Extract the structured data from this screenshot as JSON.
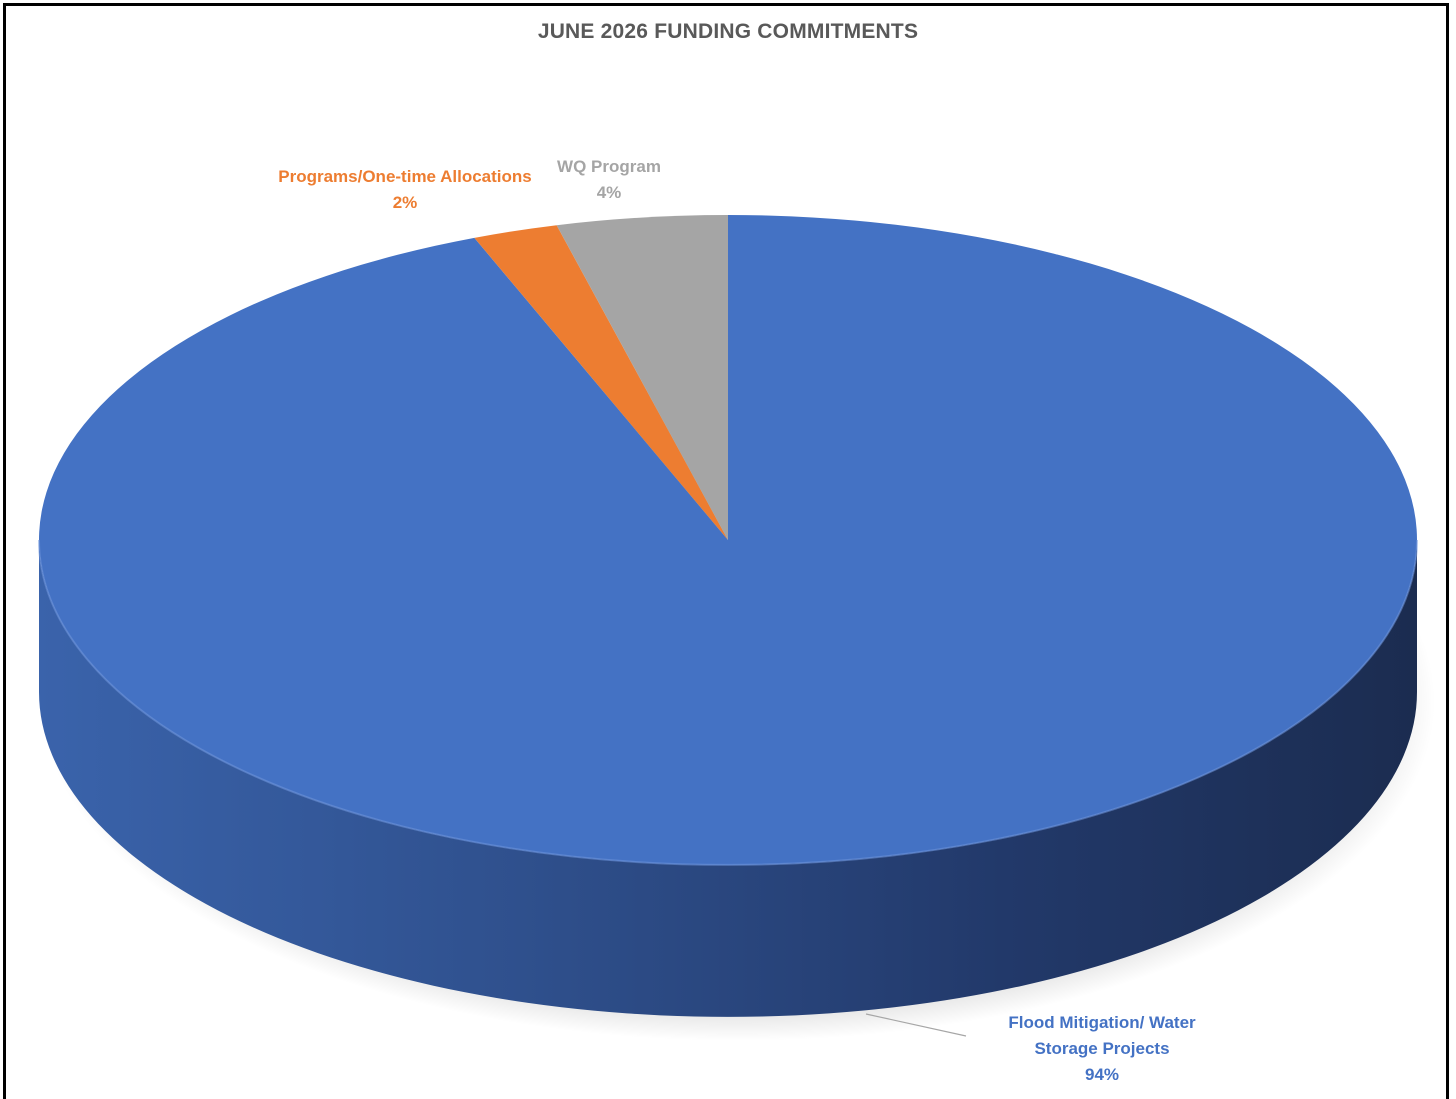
{
  "chart_data": {
    "type": "pie",
    "three_d": true,
    "title": "JUNE 2026 FUNDING COMMITMENTS",
    "start_angle_deg": 0,
    "direction": "clockwise",
    "slices": [
      {
        "label": "Flood Mitigation/ Water Storage Projects",
        "label_lines": [
          "Flood Mitigation/ Water",
          "Storage Projects"
        ],
        "value": 94,
        "display": "94%",
        "color": "#4472C4",
        "label_color": "#4472C4"
      },
      {
        "label": "Programs/One-time Allocations",
        "label_lines": [
          "Programs/One-time Allocations"
        ],
        "value": 2,
        "display": "2%",
        "color": "#ED7D31",
        "label_color": "#ED7D31"
      },
      {
        "label": "WQ Program",
        "label_lines": [
          "WQ Program"
        ],
        "value": 4,
        "display": "4%",
        "color": "#A5A5A5",
        "label_color": "#A5A5A5"
      }
    ],
    "legend": "none",
    "data_labels": "outside"
  }
}
